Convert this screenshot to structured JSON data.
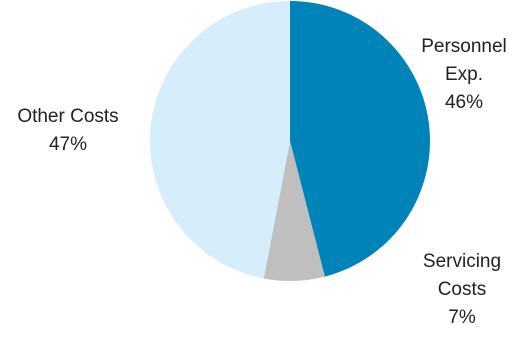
{
  "chart_data": {
    "type": "pie",
    "title": "",
    "slices": [
      {
        "label_lines": [
          "Personnel",
          "Exp."
        ],
        "value": 46,
        "value_label": "46%",
        "color": "#0083B8"
      },
      {
        "label_lines": [
          "Servicing",
          "Costs"
        ],
        "value": 7,
        "value_label": "7%",
        "color": "#BFBFBF"
      },
      {
        "label_lines": [
          "Other Costs"
        ],
        "value": 47,
        "value_label": "47%",
        "color": "#D6EEFB"
      }
    ],
    "start_angle_deg": 0,
    "direction": "clockwise"
  }
}
